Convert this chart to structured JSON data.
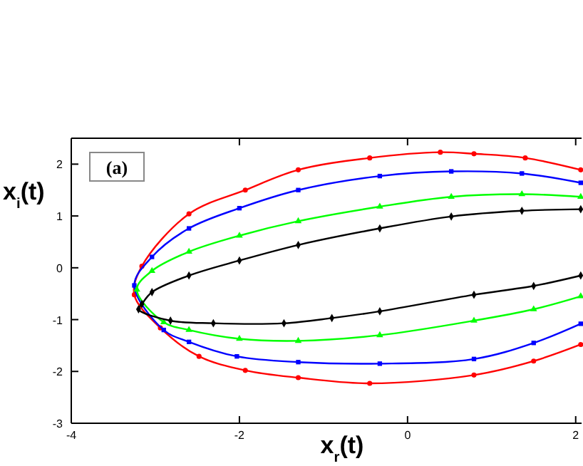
{
  "chart_data": {
    "type": "line",
    "xlabel": "x$_{r}$(t)",
    "ylabel": "x$_{i}$(t)",
    "xlim": [
      -4,
      2.07
    ],
    "ylim": [
      -3,
      2.5
    ],
    "xticks": [
      -4,
      -2,
      0,
      2
    ],
    "yticks": [
      -3,
      -2,
      -1,
      0,
      1,
      2
    ],
    "grid": false,
    "marker": "circle",
    "line_style": "solid",
    "annotations": [
      "(a)"
    ],
    "series": [
      {
        "color": "#ff0000",
        "x": [
          2.06,
          1.4,
          0.79,
          0.39,
          -0.45,
          -1.3,
          -1.93,
          -2.6,
          -3.16,
          -3.25,
          -2.94,
          -2.48,
          -1.93,
          -1.3,
          -0.45,
          0.79,
          1.5,
          2.06
        ],
        "values": [
          1.89,
          2.12,
          2.2,
          2.23,
          2.12,
          1.89,
          1.5,
          1.04,
          0.03,
          -0.52,
          -1.16,
          -1.71,
          -1.98,
          -2.12,
          -2.23,
          -2.07,
          -1.8,
          -1.48
        ]
      },
      {
        "color": "#0000ff",
        "x": [
          2.06,
          1.36,
          0.52,
          -0.33,
          -1.3,
          -2.0,
          -2.6,
          -3.04,
          -3.25,
          -2.9,
          -2.6,
          -2.03,
          -1.3,
          -0.33,
          0.79,
          1.5,
          2.06
        ],
        "values": [
          1.64,
          1.82,
          1.86,
          1.77,
          1.5,
          1.15,
          0.76,
          0.21,
          -0.34,
          -1.2,
          -1.43,
          -1.71,
          -1.82,
          -1.85,
          -1.76,
          -1.45,
          -1.08
        ],
        "marker": "square"
      },
      {
        "color": "#00ff00",
        "x": [
          2.06,
          1.36,
          0.52,
          -0.33,
          -1.3,
          -2.0,
          -2.6,
          -3.04,
          -3.22,
          -2.9,
          -2.6,
          -2.0,
          -1.3,
          -0.33,
          0.79,
          1.5,
          2.06
        ],
        "values": [
          1.37,
          1.42,
          1.37,
          1.18,
          0.9,
          0.62,
          0.31,
          -0.06,
          -0.42,
          -1.05,
          -1.2,
          -1.37,
          -1.41,
          -1.3,
          -1.02,
          -0.8,
          -0.55
        ],
        "marker": "triangle"
      },
      {
        "color": "#000000",
        "x": [
          2.06,
          1.36,
          0.52,
          -0.33,
          -1.3,
          -2.0,
          -2.6,
          -3.04,
          -3.16,
          -3.2,
          -2.82,
          -2.31,
          -1.47,
          -0.9,
          -0.33,
          0.79,
          1.5,
          2.06
        ],
        "values": [
          1.13,
          1.1,
          0.99,
          0.76,
          0.44,
          0.14,
          -0.15,
          -0.47,
          -0.7,
          -0.8,
          -1.02,
          -1.07,
          -1.07,
          -0.97,
          -0.84,
          -0.52,
          -0.35,
          -0.15
        ],
        "marker": "diamond"
      }
    ]
  }
}
